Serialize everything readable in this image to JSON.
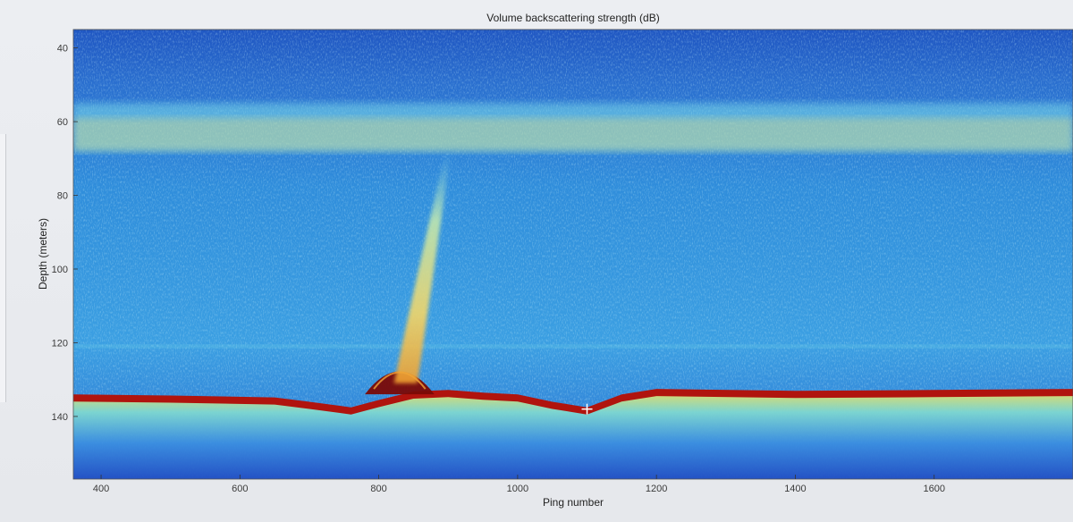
{
  "colors": {
    "water_deep": "#1f4fbf",
    "water_mid": "#2f86d6",
    "water_light": "#3fb0e6",
    "scatter_cyan": "#7ad9e8",
    "scatter_yellow": "#f2e27a",
    "scatter_orange": "#f3a23a",
    "seabed_red": "#b0140e",
    "seabed_dark": "#7a0a06"
  },
  "chart_data": {
    "type": "heatmap",
    "title": "Volume backscattering strength (dB)",
    "xlabel": "Ping number",
    "ylabel": "Depth (meters)",
    "xlim": [
      360,
      1800
    ],
    "ylim": [
      35,
      157
    ],
    "y_inverted": true,
    "xticks": [
      400,
      600,
      800,
      1000,
      1200,
      1400,
      1600
    ],
    "yticks": [
      40,
      60,
      80,
      100,
      120,
      140
    ],
    "scattering_layer": {
      "depth_range": [
        55,
        68
      ]
    },
    "faint_layer": {
      "depth": 121
    },
    "plume": {
      "base_ping": 840,
      "base_depth": 131,
      "top_ping": 900,
      "top_depth": 68
    },
    "seabed": {
      "pings": [
        360,
        500,
        650,
        700,
        760,
        800,
        850,
        900,
        950,
        1000,
        1050,
        1100,
        1150,
        1200,
        1400,
        1600,
        1800
      ],
      "depths": [
        135,
        135.3,
        135.8,
        137,
        138.5,
        136.5,
        134.2,
        133.8,
        134.5,
        135,
        137,
        138.5,
        135,
        133.5,
        134,
        133.8,
        133.5
      ]
    },
    "mound": {
      "ping_range": [
        780,
        880
      ],
      "top_depth": 124
    },
    "cursor": {
      "ping": 1100,
      "depth": 138
    },
    "grid": false
  }
}
